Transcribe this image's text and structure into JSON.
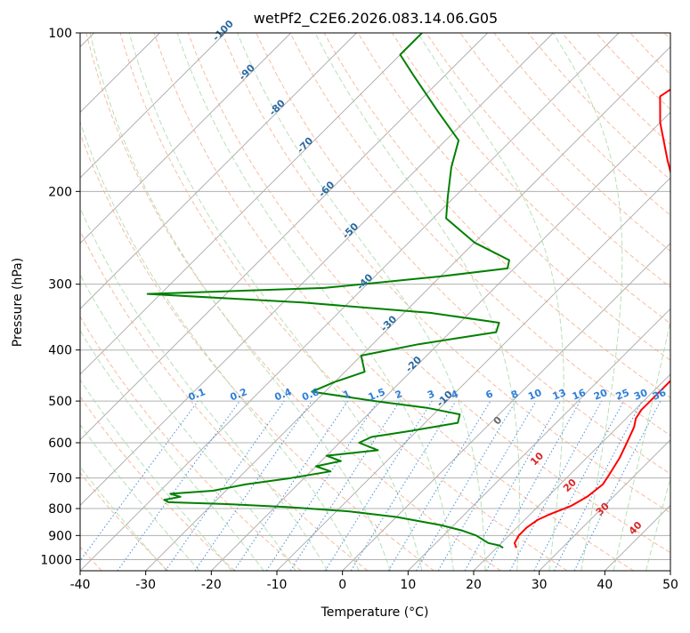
{
  "chart_data": {
    "type": "line",
    "title": "wetPf2_C2E6.2026.083.14.06.G05",
    "xlabel": "Temperature (°C)",
    "ylabel": "Pressure (hPa)",
    "xlim": [
      -40,
      50
    ],
    "ylim": [
      1050,
      100
    ],
    "y_scale": "log",
    "grid": true,
    "x_ticks": [
      -40,
      -30,
      -20,
      -10,
      0,
      10,
      20,
      30,
      40,
      50
    ],
    "y_ticks": [
      100,
      200,
      300,
      400,
      500,
      600,
      700,
      800,
      900,
      1000
    ],
    "skew_degrees": 45,
    "series": [
      {
        "color": "#ff0000",
        "points": [
          [
            23,
            950
          ],
          [
            22,
            930
          ],
          [
            21.5,
            900
          ],
          [
            21.5,
            870
          ],
          [
            22,
            840
          ],
          [
            23,
            820
          ],
          [
            25,
            790
          ],
          [
            26,
            760
          ],
          [
            26.5,
            720
          ],
          [
            26,
            690
          ],
          [
            25,
            640
          ],
          [
            23.5,
            590
          ],
          [
            22.5,
            560
          ],
          [
            21.5,
            540
          ],
          [
            21,
            520
          ],
          [
            21,
            490
          ],
          [
            21,
            450
          ],
          [
            20.5,
            430
          ],
          [
            20,
            400
          ],
          [
            19,
            385
          ],
          [
            16,
            360
          ],
          [
            12,
            330
          ],
          [
            9,
            300
          ],
          [
            2,
            250
          ],
          [
            -6,
            205
          ],
          [
            -13,
            175
          ],
          [
            -20,
            148
          ],
          [
            -24,
            132
          ],
          [
            -22,
            118
          ],
          [
            -20,
            108
          ],
          [
            -20,
            100
          ]
        ]
      },
      {
        "color": "#008000",
        "points": [
          [
            21,
            950
          ],
          [
            20,
            940
          ],
          [
            18,
            930
          ],
          [
            15,
            900
          ],
          [
            12,
            880
          ],
          [
            8,
            860
          ],
          [
            0,
            830
          ],
          [
            -8,
            810
          ],
          [
            -18,
            795
          ],
          [
            -27,
            785
          ],
          [
            -37,
            778
          ],
          [
            -38,
            770
          ],
          [
            -36,
            760
          ],
          [
            -38,
            750
          ],
          [
            -32,
            740
          ],
          [
            -28,
            720
          ],
          [
            -22,
            700
          ],
          [
            -17,
            680
          ],
          [
            -20,
            665
          ],
          [
            -17,
            650
          ],
          [
            -20,
            635
          ],
          [
            -13,
            620
          ],
          [
            -17,
            600
          ],
          [
            -16,
            585
          ],
          [
            -11,
            570
          ],
          [
            -5,
            550
          ],
          [
            -6,
            530
          ],
          [
            -12,
            515
          ],
          [
            -21,
            500
          ],
          [
            -32,
            480
          ],
          [
            -30,
            460
          ],
          [
            -27,
            440
          ],
          [
            -30,
            410
          ],
          [
            -23,
            390
          ],
          [
            -13,
            370
          ],
          [
            -14,
            355
          ],
          [
            -26,
            340
          ],
          [
            -47,
            325
          ],
          [
            -72,
            313
          ],
          [
            -46,
            305
          ],
          [
            -30,
            290
          ],
          [
            -21,
            280
          ],
          [
            -22,
            270
          ],
          [
            -30,
            250
          ],
          [
            -38,
            225
          ],
          [
            -41,
            205
          ],
          [
            -45,
            180
          ],
          [
            -48,
            160
          ],
          [
            -56,
            140
          ],
          [
            -65,
            120
          ],
          [
            -70,
            110
          ],
          [
            -70,
            100
          ]
        ]
      }
    ],
    "dry_adiabat_labels": [
      {
        "label": "-100",
        "x": -100,
        "p": 100
      },
      {
        "label": "-90",
        "x": -90,
        "p": 120
      },
      {
        "label": "-80",
        "x": -80,
        "p": 140
      },
      {
        "label": "-70",
        "x": -70,
        "p": 165
      },
      {
        "label": "-60",
        "x": -60,
        "p": 200
      },
      {
        "label": "-50",
        "x": -50,
        "p": 240
      },
      {
        "label": "-40",
        "x": -40,
        "p": 300
      },
      {
        "label": "-30",
        "x": -30,
        "p": 360
      },
      {
        "label": "-20",
        "x": -20,
        "p": 430
      },
      {
        "label": "-10",
        "x": -10,
        "p": 500
      }
    ],
    "mixing_ratio_labels": [
      "0.1",
      "0.2",
      "0.4",
      "0.6",
      "1",
      "1.5",
      "2",
      "3",
      "4",
      "6",
      "8",
      "10",
      "13",
      "16",
      "20",
      "25",
      "30",
      "36"
    ],
    "moist_adiabat_labels": [
      "0",
      "10",
      "20",
      "30",
      "40"
    ]
  }
}
